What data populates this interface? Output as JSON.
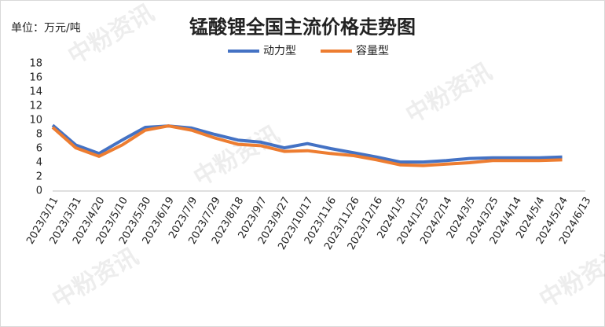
{
  "chart_data": {
    "type": "line",
    "title": "锰酸锂全国主流价格走势图",
    "unit_label": "单位：万元/吨",
    "watermark": "中粉资讯",
    "categories": [
      "2023/3/11",
      "2023/3/31",
      "2023/4/20",
      "2023/5/10",
      "2023/5/30",
      "2023/6/19",
      "2023/7/9",
      "2023/7/29",
      "2023/8/18",
      "2023/9/7",
      "2023/9/27",
      "2023/10/17",
      "2023/11/6",
      "2023/11/26",
      "2023/12/16",
      "2024/1/5",
      "2024/1/25",
      "2024/2/14",
      "2024/3/5",
      "2024/3/25",
      "2024/4/14",
      "2024/5/4",
      "2024/5/24",
      "2024/6/13"
    ],
    "series": [
      {
        "name": "动力型",
        "color": "#4472c4",
        "values": [
          9.3,
          6.5,
          5.3,
          7.2,
          9.0,
          9.2,
          8.9,
          8.0,
          7.2,
          6.9,
          6.1,
          6.7,
          6.0,
          5.4,
          4.8,
          4.1,
          4.1,
          4.3,
          4.6,
          4.7,
          4.7,
          4.7,
          4.8,
          null
        ]
      },
      {
        "name": "容量型",
        "color": "#ed7d31",
        "values": [
          9.0,
          6.1,
          4.9,
          6.5,
          8.6,
          9.2,
          8.6,
          7.5,
          6.6,
          6.4,
          5.6,
          5.7,
          5.3,
          5.0,
          4.4,
          3.7,
          3.6,
          3.8,
          4.0,
          4.3,
          4.3,
          4.3,
          4.4,
          null
        ]
      }
    ],
    "ylim": [
      0,
      18
    ],
    "yticks": [
      0,
      2,
      4,
      6,
      8,
      10,
      12,
      14,
      16,
      18
    ],
    "legend": "top"
  }
}
